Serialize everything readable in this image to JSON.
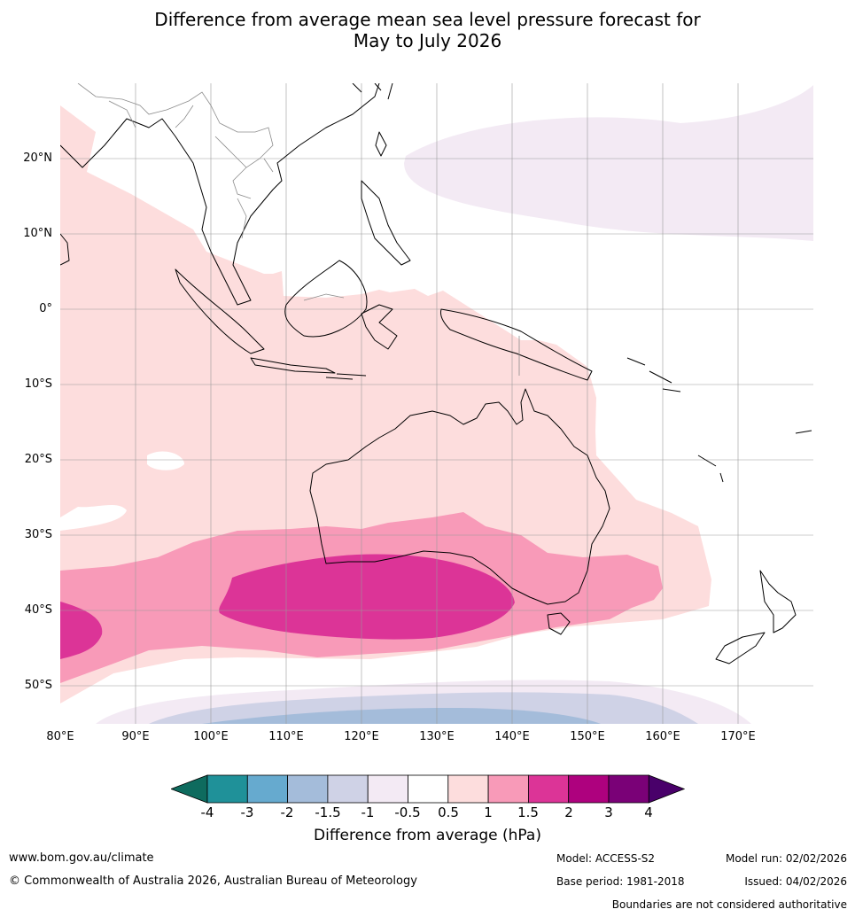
{
  "title": {
    "line1": "Difference from average mean sea level pressure forecast for",
    "line2": "May to July 2026"
  },
  "map": {
    "lat_labels": [
      "20°N",
      "10°N",
      "0°",
      "10°S",
      "20°S",
      "30°S",
      "40°S",
      "50°S"
    ],
    "lon_labels": [
      "80°E",
      "90°E",
      "100°E",
      "110°E",
      "120°E",
      "130°E",
      "140°E",
      "150°E",
      "160°E",
      "170°E"
    ],
    "lat_range": [
      -55,
      30
    ],
    "lon_range": [
      80,
      180
    ],
    "coast_color": "#000000",
    "border_color": "#8c8c8c",
    "grid_color": "#9a9a9a"
  },
  "colorbar": {
    "colors": [
      "#0e6b5e",
      "#1f9199",
      "#66aacf",
      "#a4bcda",
      "#cfd2e6",
      "#f3eaf4",
      "#ffffff",
      "#fddddd",
      "#f89ab8",
      "#dc3497",
      "#ae017e",
      "#7a0177",
      "#49006a"
    ],
    "tick_labels": [
      "-4",
      "-3",
      "-2",
      "-1.5",
      "-1",
      "-0.5",
      "0.5",
      "1",
      "1.5",
      "2",
      "3",
      "4"
    ],
    "label": "Difference from average (hPa)"
  },
  "footer": {
    "website": "www.bom.gov.au/climate",
    "copyright": "© Commonwealth of Australia 2026, Australian Bureau of Meteorology",
    "model": "Model: ACCESS-S2",
    "base_period": "Base period: 1981-2018",
    "model_run": "Model run: 02/02/2026",
    "issued": "Issued: 04/02/2026",
    "disclaimer": "Boundaries are not considered authoritative"
  }
}
